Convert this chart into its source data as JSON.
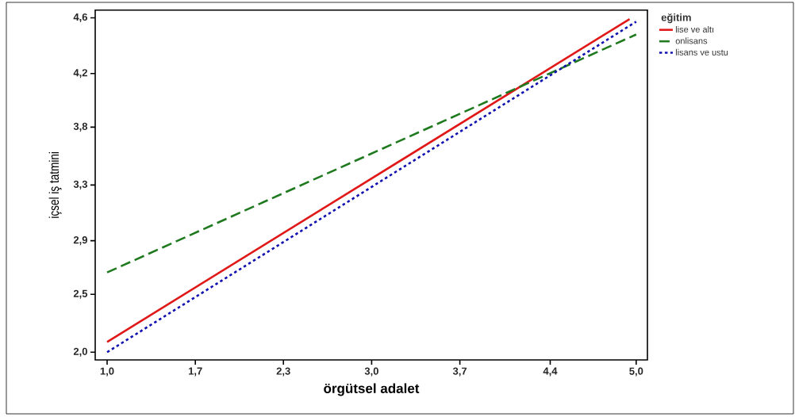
{
  "chart_data": {
    "type": "line",
    "xlabel": "örgütsel adalet",
    "ylabel": "içsel iş tatmini",
    "legend_title": "eğitim",
    "xlim": [
      0.91,
      5.085
    ],
    "ylim": [
      1.94,
      4.66
    ],
    "xticks": [
      {
        "value": 1.0,
        "label": "1,0"
      },
      {
        "value": 1.667,
        "label": "1,7"
      },
      {
        "value": 2.333,
        "label": "2,3"
      },
      {
        "value": 3.0,
        "label": "3,0"
      },
      {
        "value": 3.667,
        "label": "3,7"
      },
      {
        "value": 4.35,
        "label": "4,4"
      },
      {
        "value": 5.0,
        "label": "5,0"
      }
    ],
    "yticks": [
      {
        "value": 2.0,
        "label": "2,0"
      },
      {
        "value": 2.45,
        "label": "2,5"
      },
      {
        "value": 2.867,
        "label": "2,9"
      },
      {
        "value": 3.3,
        "label": "3,3"
      },
      {
        "value": 3.75,
        "label": "3,8"
      },
      {
        "value": 4.167,
        "label": "4,2"
      },
      {
        "value": 4.6,
        "label": "4,6"
      }
    ],
    "legend": "top right",
    "grid": false,
    "marker": "none",
    "series": [
      {
        "name": "lise ve altı",
        "color": "#e01818",
        "line_style": "solid",
        "x": [
          1.0,
          4.95
        ],
        "values": [
          2.08,
          4.59
        ]
      },
      {
        "name": "onlisans",
        "color": "#1f7a1f",
        "line_style": "dashed",
        "x": [
          1.0,
          5.0
        ],
        "values": [
          2.62,
          4.47
        ]
      },
      {
        "name": "lisans ve ustu",
        "color": "#1010b0",
        "line_style": "dotted",
        "x": [
          1.0,
          5.0
        ],
        "values": [
          2.0,
          4.57
        ]
      }
    ]
  }
}
